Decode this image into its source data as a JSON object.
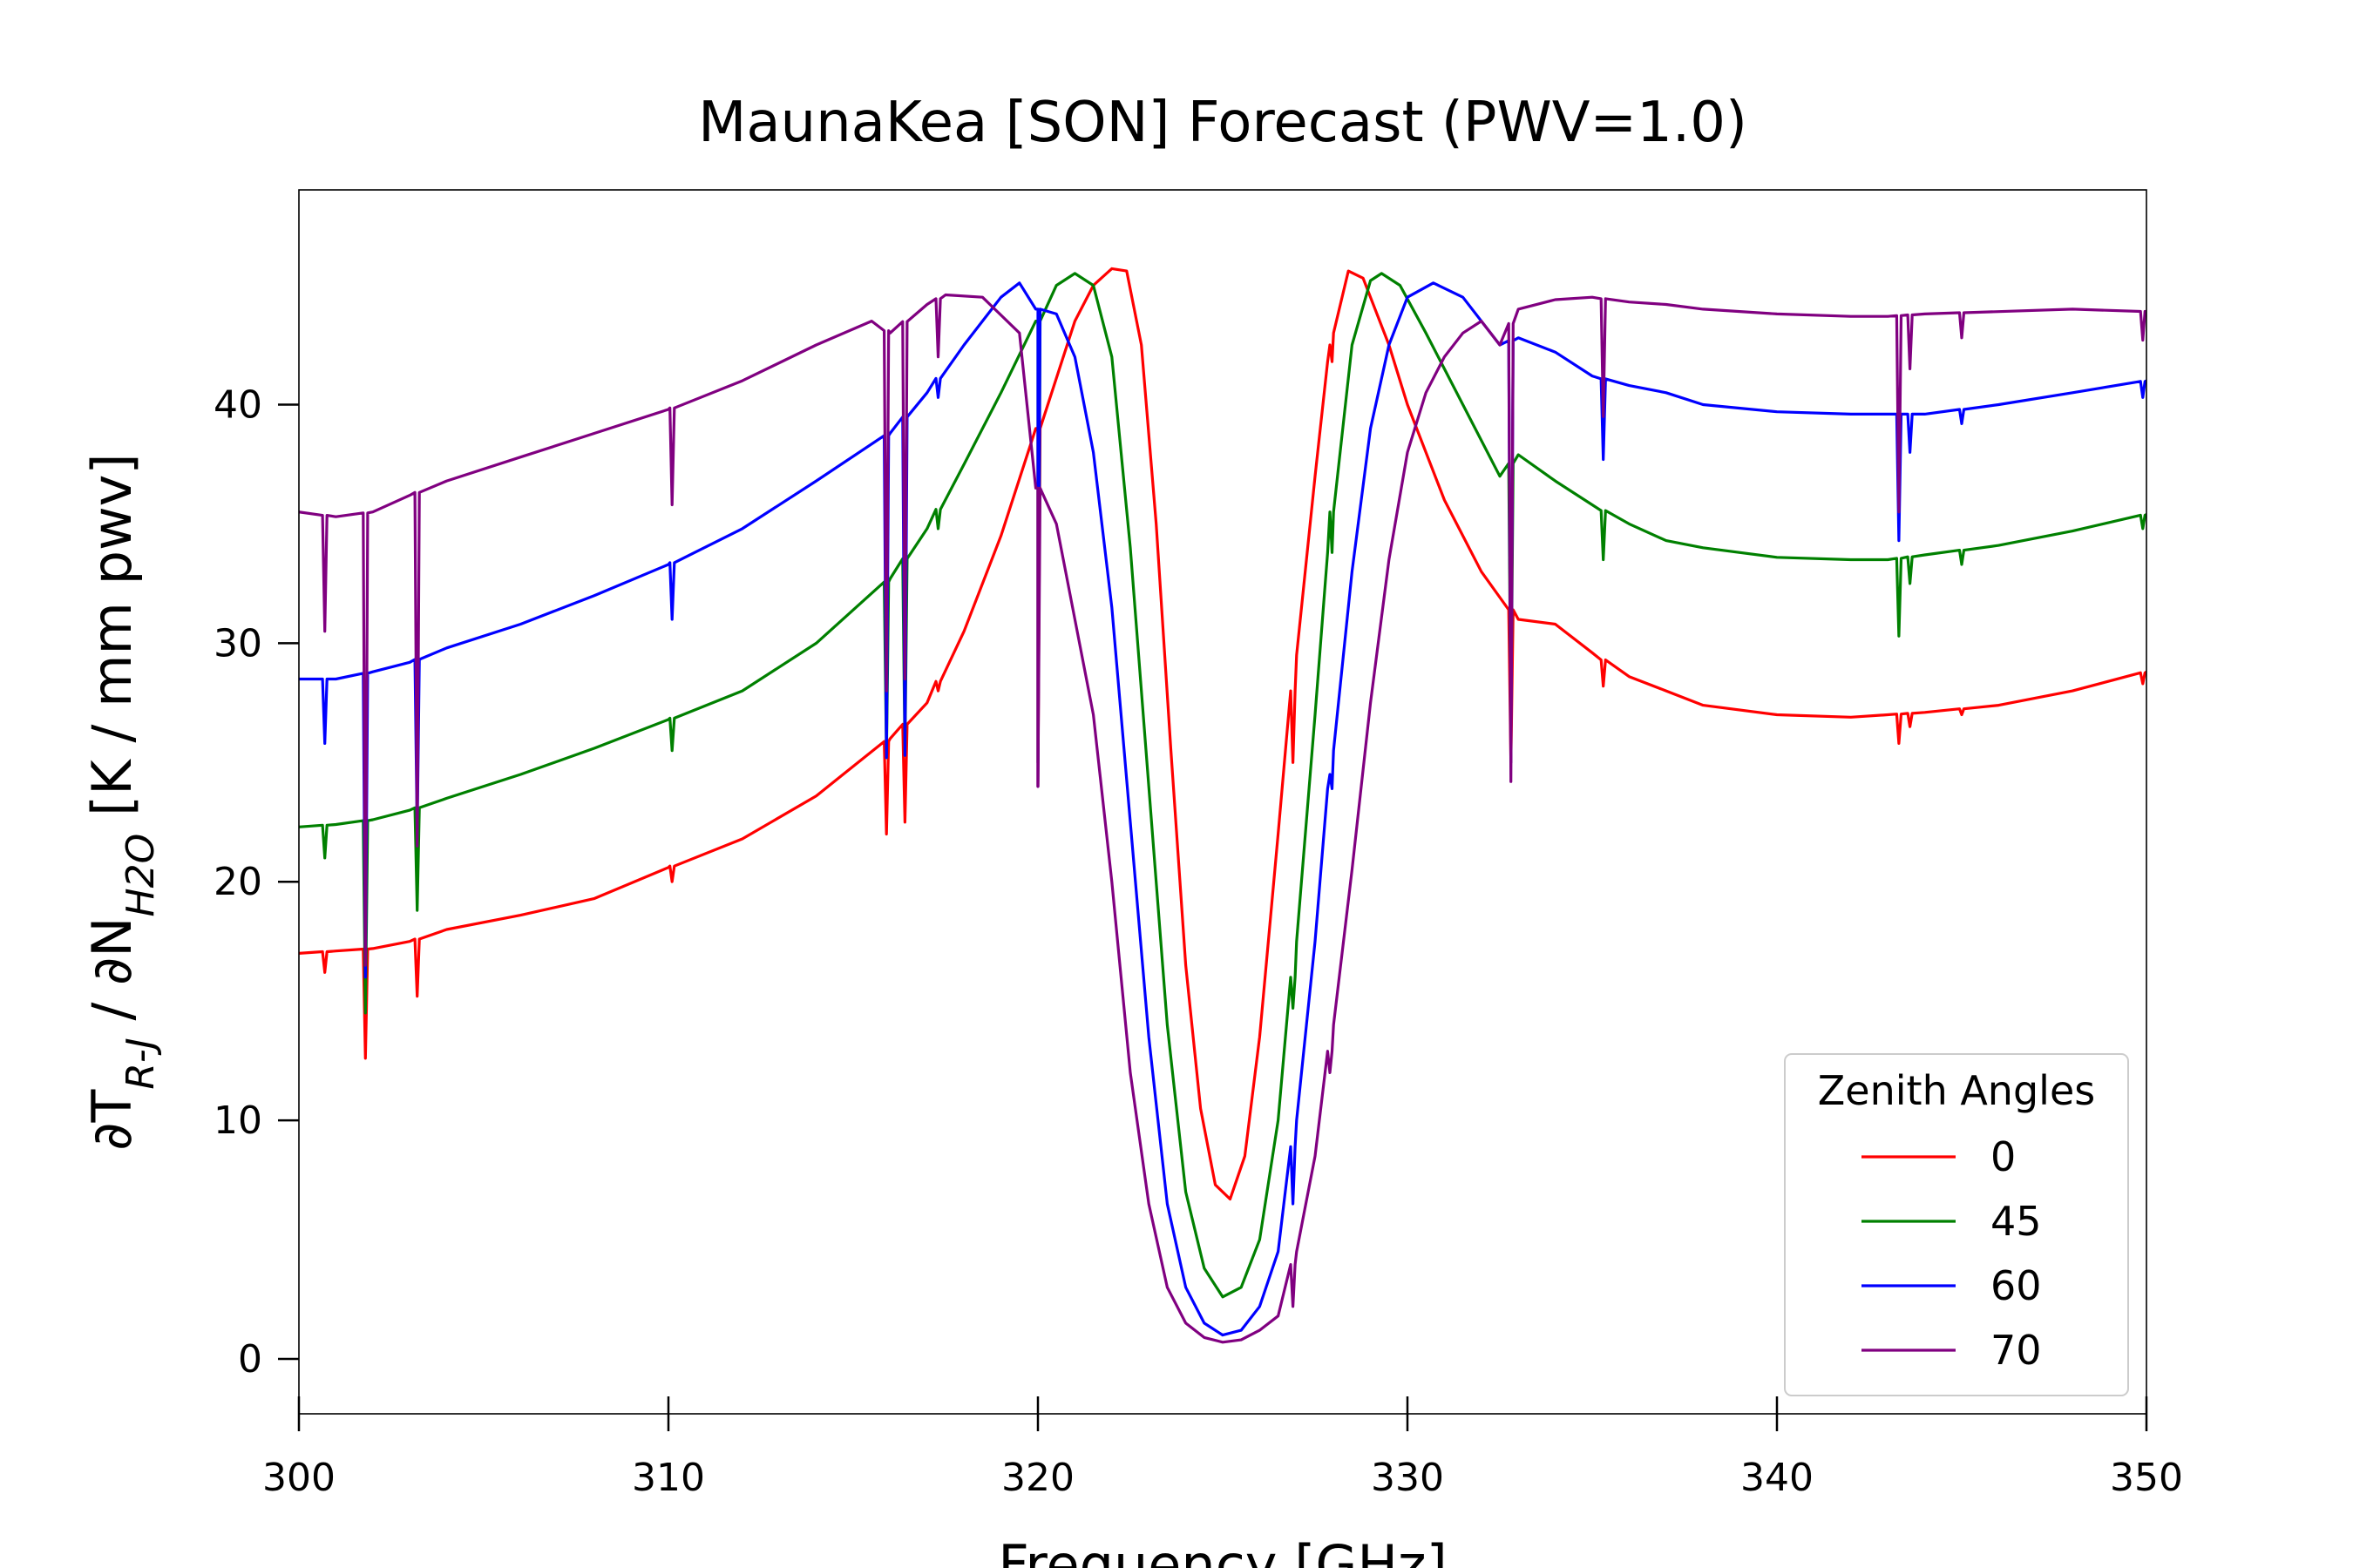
{
  "chart_data": {
    "type": "line",
    "title": "MaunaKea [SON] Forecast (PWV=1.0)",
    "xlabel": "Frequency [GHz]",
    "ylabel": "∂T_{R-J} / ∂N_{H2O} [K / mm pwv]",
    "xlim": [
      300,
      350
    ],
    "ylim": [
      -2.3,
      49
    ],
    "xticks": [
      300,
      310,
      320,
      330,
      340,
      350
    ],
    "yticks": [
      0,
      10,
      20,
      30,
      40
    ],
    "grid": false,
    "legend": {
      "title": "Zenith Angles",
      "placement": "lower-right"
    },
    "series": [
      {
        "name": "0",
        "color": "#ff0000",
        "points": [
          [
            300,
            17.0
          ],
          [
            301,
            17.1
          ],
          [
            302,
            17.2
          ],
          [
            303,
            17.5
          ],
          [
            304,
            18.0
          ],
          [
            306,
            18.6
          ],
          [
            308,
            19.3
          ],
          [
            310,
            20.6
          ],
          [
            312,
            21.8
          ],
          [
            314,
            23.6
          ],
          [
            316,
            26.0
          ],
          [
            317,
            27.5
          ],
          [
            318,
            30.5
          ],
          [
            319,
            34.5
          ],
          [
            320,
            39.0
          ],
          [
            321,
            43.5
          ],
          [
            321.5,
            45.0
          ],
          [
            322,
            45.7
          ],
          [
            322.4,
            45.6
          ],
          [
            322.8,
            42.5
          ],
          [
            323.2,
            35.0
          ],
          [
            323.6,
            25.5
          ],
          [
            324,
            16.5
          ],
          [
            324.4,
            10.5
          ],
          [
            324.8,
            7.3
          ],
          [
            325.2,
            6.7
          ],
          [
            325.6,
            8.5
          ],
          [
            326,
            13.5
          ],
          [
            326.5,
            22.0
          ],
          [
            327,
            29.5
          ],
          [
            327.5,
            37.0
          ],
          [
            328,
            43.0
          ],
          [
            328.4,
            45.6
          ],
          [
            328.8,
            45.3
          ],
          [
            329.5,
            42.5
          ],
          [
            330,
            40.0
          ],
          [
            331,
            36.0
          ],
          [
            332,
            33.0
          ],
          [
            333,
            31.0
          ],
          [
            334,
            30.8
          ],
          [
            335,
            29.6
          ],
          [
            336,
            28.6
          ],
          [
            337,
            28.0
          ],
          [
            338,
            27.4
          ],
          [
            340,
            27.0
          ],
          [
            342,
            26.9
          ],
          [
            343,
            27.0
          ],
          [
            344,
            27.1
          ],
          [
            346,
            27.4
          ],
          [
            348,
            28.0
          ],
          [
            350,
            28.8
          ]
        ],
        "dips": [
          [
            300.7,
            16.2
          ],
          [
            301.8,
            12.6
          ],
          [
            303.2,
            15.2
          ],
          [
            310.1,
            20.0
          ],
          [
            315.9,
            22.0
          ],
          [
            316.4,
            22.5
          ],
          [
            317.3,
            28.0
          ],
          [
            320,
            24.0
          ],
          [
            326.9,
            25.0
          ],
          [
            327.9,
            42.5
          ],
          [
            332.8,
            25.0
          ],
          [
            335.3,
            28.2
          ],
          [
            343.3,
            25.8
          ],
          [
            343.6,
            26.5
          ],
          [
            345,
            27.0
          ],
          [
            349.9,
            28.3
          ]
        ]
      },
      {
        "name": "45",
        "color": "#008000",
        "points": [
          [
            300,
            22.3
          ],
          [
            301,
            22.4
          ],
          [
            302,
            22.6
          ],
          [
            303,
            23.0
          ],
          [
            304,
            23.5
          ],
          [
            306,
            24.5
          ],
          [
            308,
            25.6
          ],
          [
            310,
            26.8
          ],
          [
            312,
            28.0
          ],
          [
            314,
            30.0
          ],
          [
            316,
            32.7
          ],
          [
            317,
            34.8
          ],
          [
            318,
            37.5
          ],
          [
            319,
            40.5
          ],
          [
            320,
            43.5
          ],
          [
            320.5,
            45.0
          ],
          [
            321,
            45.5
          ],
          [
            321.5,
            45.0
          ],
          [
            322,
            42.0
          ],
          [
            322.5,
            34.0
          ],
          [
            323,
            24.0
          ],
          [
            323.5,
            14.0
          ],
          [
            324,
            7.0
          ],
          [
            324.5,
            3.8
          ],
          [
            325,
            2.6
          ],
          [
            325.5,
            3.0
          ],
          [
            326,
            5.0
          ],
          [
            326.5,
            10.0
          ],
          [
            327,
            17.5
          ],
          [
            327.5,
            27.0
          ],
          [
            328,
            35.5
          ],
          [
            328.5,
            42.5
          ],
          [
            329,
            45.2
          ],
          [
            329.3,
            45.5
          ],
          [
            329.8,
            45.0
          ],
          [
            330.5,
            43.0
          ],
          [
            331.5,
            40.0
          ],
          [
            332.5,
            37.0
          ],
          [
            333,
            37.9
          ],
          [
            334,
            36.8
          ],
          [
            335,
            35.8
          ],
          [
            336,
            35.0
          ],
          [
            337,
            34.3
          ],
          [
            338,
            34.0
          ],
          [
            340,
            33.6
          ],
          [
            342,
            33.5
          ],
          [
            343,
            33.5
          ],
          [
            344,
            33.7
          ],
          [
            346,
            34.1
          ],
          [
            348,
            34.7
          ],
          [
            350,
            35.4
          ]
        ],
        "dips": [
          [
            300.7,
            21.0
          ],
          [
            301.8,
            14.5
          ],
          [
            303.2,
            18.8
          ],
          [
            310.1,
            25.5
          ],
          [
            315.9,
            25.2
          ],
          [
            316.4,
            25.3
          ],
          [
            317.3,
            34.8
          ],
          [
            320,
            25.0
          ],
          [
            326.9,
            14.7
          ],
          [
            327.9,
            35.5
          ],
          [
            332.8,
            26.5
          ],
          [
            335.3,
            33.5
          ],
          [
            343.3,
            30.3
          ],
          [
            343.6,
            32.5
          ],
          [
            345,
            33.3
          ],
          [
            349.9,
            34.8
          ]
        ]
      },
      {
        "name": "60",
        "color": "#0000ff",
        "points": [
          [
            300,
            28.5
          ],
          [
            301,
            28.5
          ],
          [
            302,
            28.8
          ],
          [
            303,
            29.2
          ],
          [
            304,
            29.8
          ],
          [
            306,
            30.8
          ],
          [
            308,
            32.0
          ],
          [
            310,
            33.3
          ],
          [
            312,
            34.8
          ],
          [
            314,
            36.8
          ],
          [
            316,
            38.8
          ],
          [
            317,
            40.5
          ],
          [
            318,
            42.5
          ],
          [
            319,
            44.5
          ],
          [
            319.5,
            45.1
          ],
          [
            320,
            44.0
          ],
          [
            320.5,
            43.8
          ],
          [
            321,
            42.0
          ],
          [
            321.5,
            38.0
          ],
          [
            322,
            31.5
          ],
          [
            322.5,
            22.5
          ],
          [
            323,
            13.5
          ],
          [
            323.5,
            6.5
          ],
          [
            324,
            3.0
          ],
          [
            324.5,
            1.5
          ],
          [
            325,
            1.0
          ],
          [
            325.5,
            1.2
          ],
          [
            326,
            2.2
          ],
          [
            326.5,
            4.5
          ],
          [
            327,
            10.0
          ],
          [
            327.5,
            17.5
          ],
          [
            328,
            25.5
          ],
          [
            328.5,
            33.0
          ],
          [
            329,
            39.0
          ],
          [
            329.5,
            42.5
          ],
          [
            330,
            44.5
          ],
          [
            330.7,
            45.1
          ],
          [
            331.5,
            44.5
          ],
          [
            332.5,
            42.5
          ],
          [
            333,
            42.8
          ],
          [
            334,
            42.2
          ],
          [
            335,
            41.2
          ],
          [
            336,
            40.8
          ],
          [
            337,
            40.5
          ],
          [
            338,
            40.0
          ],
          [
            340,
            39.7
          ],
          [
            342,
            39.6
          ],
          [
            343,
            39.6
          ],
          [
            344,
            39.6
          ],
          [
            346,
            40.0
          ],
          [
            348,
            40.5
          ],
          [
            350,
            41.0
          ]
        ],
        "dips": [
          [
            300.7,
            25.8
          ],
          [
            301.8,
            16.0
          ],
          [
            303.2,
            22.0
          ],
          [
            310.1,
            31.0
          ],
          [
            315.9,
            25.2
          ],
          [
            316.4,
            25.3
          ],
          [
            317.3,
            40.3
          ],
          [
            320,
            24.0
          ],
          [
            326.9,
            6.5
          ],
          [
            327.9,
            24.5
          ],
          [
            332.8,
            25.0
          ],
          [
            335.3,
            37.7
          ],
          [
            343.3,
            34.3
          ],
          [
            343.6,
            38.0
          ],
          [
            345,
            39.2
          ],
          [
            349.9,
            40.3
          ]
        ]
      },
      {
        "name": "70",
        "color": "#800080",
        "points": [
          [
            300,
            35.5
          ],
          [
            301,
            35.3
          ],
          [
            302,
            35.5
          ],
          [
            303,
            36.2
          ],
          [
            304,
            36.8
          ],
          [
            306,
            37.8
          ],
          [
            308,
            38.8
          ],
          [
            310,
            39.8
          ],
          [
            312,
            41.0
          ],
          [
            314,
            42.5
          ],
          [
            315.5,
            43.5
          ],
          [
            316,
            43.0
          ],
          [
            317,
            44.2
          ],
          [
            317.5,
            44.6
          ],
          [
            318.5,
            44.5
          ],
          [
            319.5,
            43.0
          ],
          [
            320,
            36.5
          ],
          [
            320.5,
            35.0
          ],
          [
            321,
            31.0
          ],
          [
            321.5,
            27.0
          ],
          [
            322,
            20.0
          ],
          [
            322.5,
            12.0
          ],
          [
            323,
            6.5
          ],
          [
            323.5,
            3.0
          ],
          [
            324,
            1.5
          ],
          [
            324.5,
            0.9
          ],
          [
            325,
            0.7
          ],
          [
            325.5,
            0.8
          ],
          [
            326,
            1.2
          ],
          [
            326.5,
            1.8
          ],
          [
            327,
            4.5
          ],
          [
            327.5,
            8.5
          ],
          [
            328,
            14.0
          ],
          [
            328.5,
            20.5
          ],
          [
            329,
            27.5
          ],
          [
            329.5,
            33.5
          ],
          [
            330,
            38.0
          ],
          [
            330.5,
            40.5
          ],
          [
            331,
            42.0
          ],
          [
            331.5,
            43.0
          ],
          [
            332,
            43.5
          ],
          [
            332.5,
            42.5
          ],
          [
            333,
            44.0
          ],
          [
            334,
            44.4
          ],
          [
            335,
            44.5
          ],
          [
            336,
            44.3
          ],
          [
            337,
            44.2
          ],
          [
            338,
            44.0
          ],
          [
            340,
            43.8
          ],
          [
            342,
            43.7
          ],
          [
            343,
            43.7
          ],
          [
            344,
            43.8
          ],
          [
            346,
            43.9
          ],
          [
            348,
            44.0
          ],
          [
            350,
            43.9
          ]
        ],
        "dips": [
          [
            300.7,
            30.5
          ],
          [
            301.8,
            16.5
          ],
          [
            303.2,
            21.5
          ],
          [
            310.1,
            35.8
          ],
          [
            315.9,
            28.0
          ],
          [
            316.4,
            28.5
          ],
          [
            317.3,
            42.0
          ],
          [
            320,
            24.0
          ],
          [
            326.9,
            2.2
          ],
          [
            327.9,
            12.0
          ],
          [
            332.8,
            24.2
          ],
          [
            335.3,
            39.5
          ],
          [
            343.3,
            35.5
          ],
          [
            343.6,
            41.5
          ],
          [
            345,
            42.8
          ],
          [
            349.9,
            42.7
          ]
        ]
      }
    ]
  }
}
